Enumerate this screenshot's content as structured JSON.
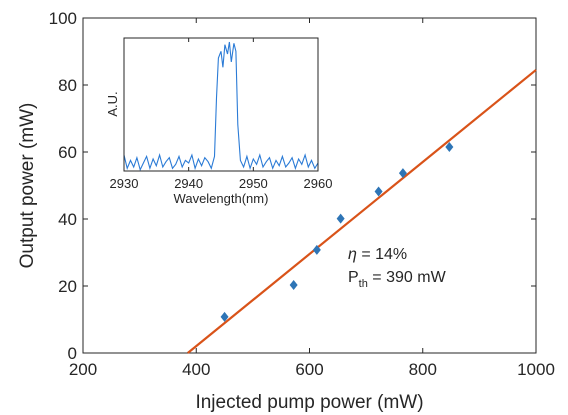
{
  "colors": {
    "marker": "#2e75b6",
    "fit_line": "#d95319",
    "spectrum": "#2b7bd6",
    "axis": "#262626"
  },
  "chart_data": [
    {
      "type": "scatter",
      "xlabel": "Injected pump power (mW)",
      "ylabel": "Output power (mW)",
      "xlim": [
        200,
        1000
      ],
      "ylim": [
        0,
        100
      ],
      "xticks": [
        200,
        400,
        600,
        800,
        1000
      ],
      "yticks": [
        0,
        20,
        40,
        60,
        80,
        100
      ],
      "grid": false,
      "series": [
        {
          "marker": "diamond",
          "x": [
            450,
            572,
            613,
            655,
            722,
            765,
            847
          ],
          "y": [
            10.8,
            20.3,
            30.8,
            40.1,
            48.2,
            53.7,
            61.5
          ]
        }
      ],
      "fit_line": {
        "x": [
          385,
          1000
        ],
        "y": [
          0,
          84.5
        ]
      },
      "annotations": [
        {
          "symbol": "η",
          "text": " = 14%"
        },
        {
          "main": "P",
          "sub": "th",
          "text": " = 390 mW"
        }
      ]
    },
    {
      "type": "line",
      "xlabel": "Wavelength(nm)",
      "ylabel": "A.U.",
      "xlim": [
        2930,
        2960
      ],
      "ylim": [
        0,
        1
      ],
      "xticks": [
        2930,
        2940,
        2950,
        2960
      ],
      "grid": false,
      "series": [
        {
          "x": [
            2930,
            2930.5,
            2931,
            2931.5,
            2932,
            2932.5,
            2933,
            2933.5,
            2934,
            2934.5,
            2935,
            2935.5,
            2936,
            2936.5,
            2937,
            2937.5,
            2938,
            2938.5,
            2939,
            2939.5,
            2940,
            2940.5,
            2941,
            2941.5,
            2942,
            2942.5,
            2943,
            2943.5,
            2944,
            2944.3,
            2944.6,
            2945,
            2945.3,
            2945.6,
            2946,
            2946.3,
            2946.6,
            2947,
            2947.3,
            2947.6,
            2948,
            2948.5,
            2949,
            2949.5,
            2950,
            2950.5,
            2951,
            2951.5,
            2952,
            2952.5,
            2953,
            2953.5,
            2954,
            2954.5,
            2955,
            2955.5,
            2956,
            2956.5,
            2957,
            2957.5,
            2958,
            2958.5,
            2959,
            2959.5,
            2960
          ],
          "y": [
            0.12,
            0.02,
            0.08,
            0.03,
            0.1,
            0.01,
            0.06,
            0.11,
            0.02,
            0.09,
            0.04,
            0.12,
            0.03,
            0.07,
            0.1,
            0.02,
            0.05,
            0.11,
            0.03,
            0.08,
            0.06,
            0.12,
            0.02,
            0.09,
            0.04,
            0.1,
            0.07,
            0.02,
            0.11,
            0.55,
            0.85,
            0.9,
            0.78,
            0.95,
            0.88,
            0.97,
            0.82,
            0.96,
            0.9,
            0.35,
            0.08,
            0.03,
            0.11,
            0.02,
            0.09,
            0.05,
            0.12,
            0.03,
            0.07,
            0.1,
            0.02,
            0.08,
            0.04,
            0.11,
            0.03,
            0.06,
            0.1,
            0.02,
            0.09,
            0.05,
            0.12,
            0.03,
            0.08,
            0.02,
            0.06
          ]
        }
      ]
    }
  ]
}
